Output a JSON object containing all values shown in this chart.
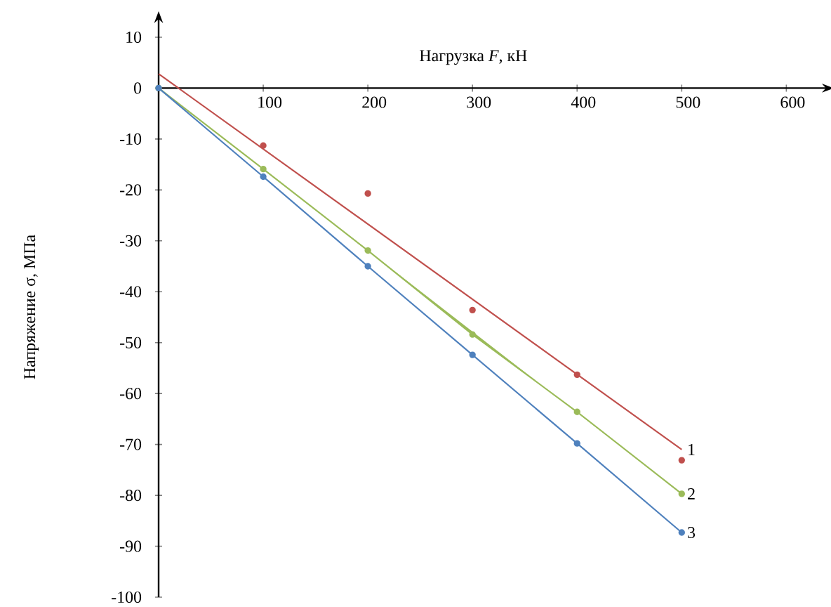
{
  "chart_data": {
    "type": "line",
    "xlabel": "Нагрузка *F*, кН",
    "ylabel": "Напряжение σ, МПа",
    "xlim": [
      0,
      640
    ],
    "ylim": [
      -100,
      14
    ],
    "xticks": [
      100,
      200,
      300,
      400,
      500,
      600
    ],
    "yticks": [
      10,
      0,
      -10,
      -20,
      -30,
      -40,
      -50,
      -60,
      -70,
      -80,
      -90,
      -100
    ],
    "grid": false,
    "marker": "circle",
    "series": [
      {
        "type": "scatter",
        "color": "#c0504d",
        "x": [
          100,
          200,
          300,
          400,
          500
        ],
        "values": [
          -11.3,
          -20.7,
          -43.6,
          -56.3,
          -73.1
        ]
      },
      {
        "type": "line",
        "name": "1",
        "color": "#c0504d",
        "marker": "none",
        "x": [
          0,
          500
        ],
        "values": [
          2.8,
          -71
        ]
      },
      {
        "name": "2",
        "color": "#9bbb59",
        "x": [
          0,
          100,
          200,
          300,
          400,
          500
        ],
        "values": [
          0,
          -15.9,
          -31.9,
          -48.4,
          -63.6,
          -79.7
        ]
      },
      {
        "name": "3",
        "color": "#4f81bd",
        "x": [
          0,
          100,
          200,
          300,
          400,
          500
        ],
        "values": [
          0,
          -17.4,
          -35.0,
          -52.4,
          -69.8,
          -87.3
        ]
      }
    ]
  }
}
